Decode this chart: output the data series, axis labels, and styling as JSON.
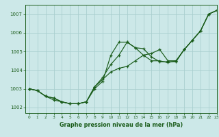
{
  "title": "Graphe pression niveau de la mer (hPa)",
  "background_color": "#cce8e8",
  "grid_color": "#aacfcf",
  "line_color": "#1a5c1a",
  "xlim": [
    -0.5,
    23
  ],
  "ylim": [
    1001.7,
    1007.5
  ],
  "yticks": [
    1002,
    1003,
    1004,
    1005,
    1006,
    1007
  ],
  "xticks": [
    0,
    1,
    2,
    3,
    4,
    5,
    6,
    7,
    8,
    9,
    10,
    11,
    12,
    13,
    14,
    15,
    16,
    17,
    18,
    19,
    20,
    21,
    22,
    23
  ],
  "series1": {
    "x": [
      0,
      1,
      2,
      3,
      4,
      5,
      6,
      7,
      8,
      9,
      10,
      11,
      12,
      13,
      14,
      15,
      16,
      17,
      18,
      19,
      20,
      21,
      22,
      23
    ],
    "y": [
      1003.0,
      1002.9,
      1002.6,
      1002.5,
      1002.3,
      1002.2,
      1002.2,
      1002.3,
      1003.1,
      1003.5,
      1003.9,
      1004.1,
      1004.2,
      1004.5,
      1004.8,
      1004.9,
      1005.1,
      1004.5,
      1004.5,
      1005.1,
      1005.6,
      1006.1,
      1007.0,
      1007.2
    ]
  },
  "series2": {
    "x": [
      0,
      1,
      2,
      3,
      4,
      5,
      6,
      7,
      8,
      9,
      10,
      11,
      12,
      13,
      14,
      15,
      16,
      17,
      18,
      19,
      20,
      21,
      22,
      23
    ],
    "y": [
      1003.0,
      1002.9,
      1002.6,
      1002.4,
      1002.3,
      1002.2,
      1002.2,
      1002.3,
      1003.0,
      1003.4,
      1004.8,
      1005.5,
      1005.5,
      1005.2,
      1004.8,
      1004.5,
      1004.5,
      1004.4,
      1004.5,
      1005.1,
      1005.6,
      1006.1,
      1007.0,
      1007.2
    ]
  },
  "series3": {
    "x": [
      0,
      1,
      2,
      3,
      4,
      5,
      6,
      7,
      8,
      9,
      10,
      11,
      12,
      13,
      14,
      15,
      16,
      17,
      18,
      19,
      20,
      21,
      22,
      23
    ],
    "y": [
      1003.0,
      1002.9,
      1002.6,
      1002.5,
      1002.3,
      1002.2,
      1002.2,
      1002.3,
      1003.1,
      1003.6,
      1004.3,
      1004.8,
      1005.5,
      1005.2,
      1005.15,
      1004.7,
      1004.45,
      1004.45,
      1004.45,
      1005.1,
      1005.6,
      1006.1,
      1007.0,
      1007.2
    ]
  }
}
